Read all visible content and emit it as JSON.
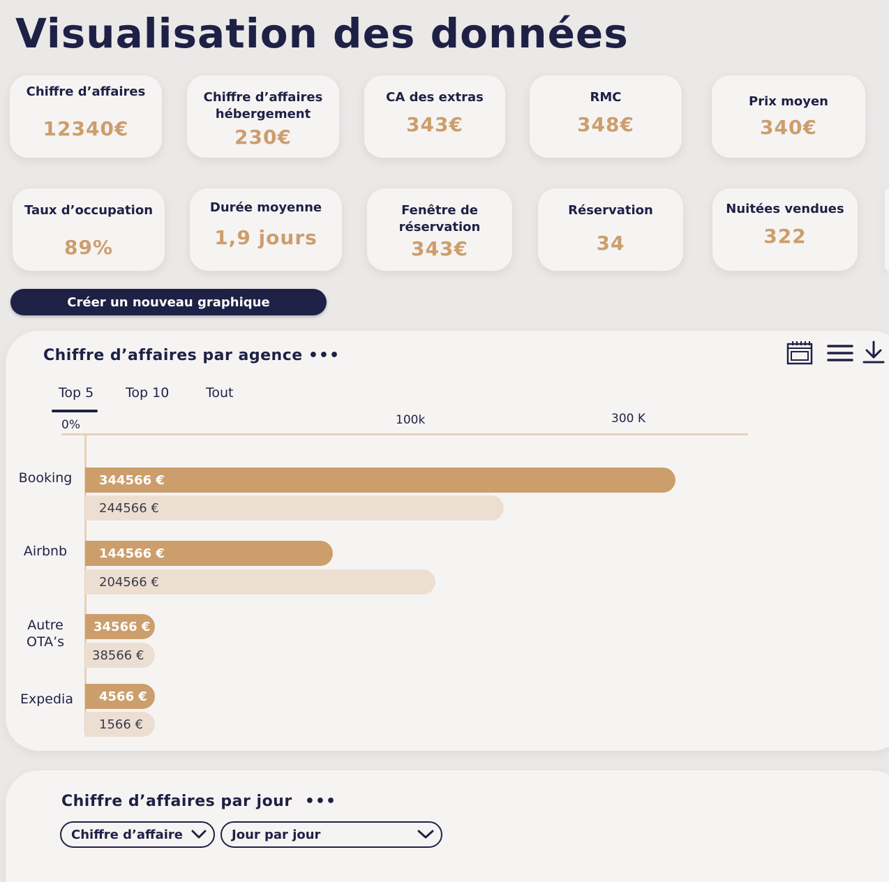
{
  "page_title": "Visualisation des données",
  "kpis_row1": [
    {
      "label": "Chiffre d’affaires",
      "value": "12340€"
    },
    {
      "label": "Chiffre d’affaires\nhébergement",
      "value": "230€"
    },
    {
      "label": "CA des extras",
      "value": "343€"
    },
    {
      "label": "RMC",
      "value": "348€"
    },
    {
      "label": "Prix moyen",
      "value": "340€"
    }
  ],
  "kpis_row2": [
    {
      "label": "Taux d’occupation",
      "value": "89%"
    },
    {
      "label": "Durée moyenne",
      "value": "1,9 jours"
    },
    {
      "label": "Fenêtre de\nréservation",
      "value": "343€"
    },
    {
      "label": "Réservation",
      "value": "34"
    },
    {
      "label": "Nuitées vendues",
      "value": "322"
    }
  ],
  "create_button_label": "Créer un nouveau graphique",
  "agency_chart": {
    "title": "Chiffre d’affaires par agence",
    "more_label": "•••",
    "tabs": [
      "Top 5",
      "Top 10",
      "Tout"
    ],
    "active_tab": "Top 5",
    "toolbar_icons": [
      "calendar-icon",
      "menu-icon",
      "download-icon"
    ]
  },
  "chart_data": {
    "type": "bar",
    "orientation": "horizontal",
    "title": "Chiffre d’affaires par agence",
    "x_ticks": [
      "0%",
      "100k",
      "300 K"
    ],
    "categories": [
      "Booking",
      "Airbnb",
      "Autre\nOTA’s",
      "Expedia"
    ],
    "series": [
      {
        "values": [
          344566,
          144566,
          34566,
          4566
        ],
        "labels": [
          "344566 €",
          "144566 €",
          "34566 €",
          "4566 €"
        ],
        "color": "#cc9e6c"
      },
      {
        "values": [
          244566,
          204566,
          38566,
          1566
        ],
        "labels": [
          "244566 €",
          "204566 €",
          "38566 €",
          "1566 €"
        ],
        "color": "#ecdfd2"
      }
    ]
  },
  "daily_chart": {
    "title": "Chiffre d’affaires par jour",
    "more_label": "•••",
    "select_metric": "Chiffre d’affaire",
    "select_period": "Jour par jour"
  },
  "colors": {
    "navy": "#1e2145",
    "accent": "#cc9e6c",
    "accent_light": "#ecdfd2",
    "card": "#f6f4f3",
    "background": "#ebe8e8"
  }
}
